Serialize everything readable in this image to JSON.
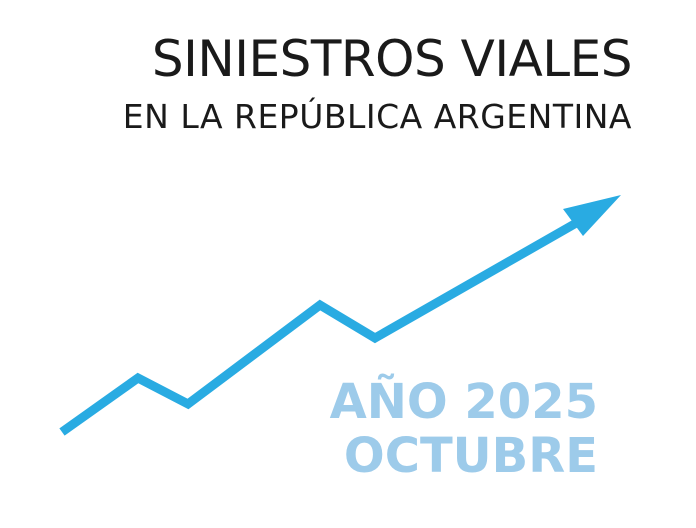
{
  "header": {
    "title": "SINIESTROS VIALES",
    "subtitle": "EN LA REPÚBLICA ARGENTINA"
  },
  "period": {
    "year_line": "AÑO 2025",
    "month": "OCTUBRE"
  }
}
